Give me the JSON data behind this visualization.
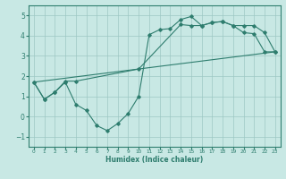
{
  "line1_x": [
    0,
    1,
    2,
    3,
    4,
    5,
    6,
    7,
    8,
    9,
    10,
    11,
    12,
    13,
    14,
    15,
    16,
    17,
    18,
    19,
    20,
    21,
    22,
    23
  ],
  "line1_y": [
    1.7,
    0.85,
    1.2,
    1.7,
    0.6,
    0.3,
    -0.45,
    -0.7,
    -0.35,
    0.15,
    1.0,
    4.05,
    4.3,
    4.35,
    4.8,
    4.95,
    4.5,
    4.65,
    4.7,
    4.5,
    4.15,
    4.1,
    3.2,
    3.2
  ],
  "line2_x": [
    0,
    23
  ],
  "line2_y": [
    1.7,
    3.2
  ],
  "line3_x": [
    0,
    1,
    2,
    3,
    4,
    10,
    14,
    15,
    16,
    17,
    18,
    19,
    20,
    21,
    22,
    23
  ],
  "line3_y": [
    1.7,
    0.85,
    1.2,
    1.75,
    1.75,
    2.35,
    4.55,
    4.5,
    4.5,
    4.65,
    4.7,
    4.5,
    4.5,
    4.5,
    4.15,
    3.2
  ],
  "color": "#2e7d6e",
  "bg_color": "#c8e8e4",
  "grid_color": "#9dc8c4",
  "xlabel": "Humidex (Indice chaleur)",
  "xlim": [
    -0.5,
    23.5
  ],
  "ylim": [
    -1.5,
    5.5
  ],
  "yticks": [
    -1,
    0,
    1,
    2,
    3,
    4,
    5
  ],
  "xticks": [
    0,
    1,
    2,
    3,
    4,
    5,
    6,
    7,
    8,
    9,
    10,
    11,
    12,
    13,
    14,
    15,
    16,
    17,
    18,
    19,
    20,
    21,
    22,
    23
  ]
}
